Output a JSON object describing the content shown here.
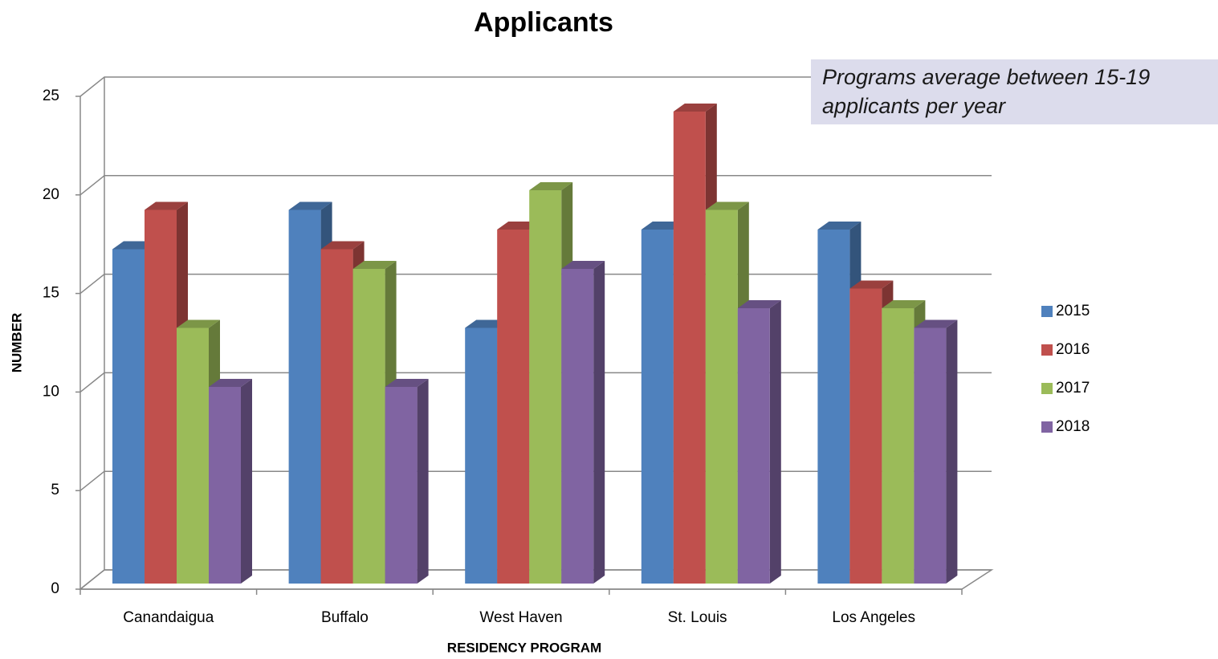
{
  "chart_data": {
    "type": "bar3d",
    "title": "Applicants",
    "annotation": "Programs average between 15-19 applicants per year",
    "x_label": "RESIDENCY PROGRAM",
    "y_label": "NUMBER",
    "categories": [
      "Canandaigua",
      "Buffalo",
      "West Haven",
      "St. Louis",
      "Los Angeles"
    ],
    "series": [
      {
        "name": "2015",
        "color": "#4f81bd",
        "values": [
          17,
          19,
          13,
          18,
          18
        ]
      },
      {
        "name": "2016",
        "color": "#c0504d",
        "values": [
          19,
          17,
          18,
          24,
          15
        ]
      },
      {
        "name": "2017",
        "color": "#9bbb59",
        "values": [
          13,
          16,
          20,
          19,
          14
        ]
      },
      {
        "name": "2018",
        "color": "#8064a2",
        "values": [
          10,
          10,
          16,
          14,
          13
        ]
      }
    ],
    "ylim": [
      0,
      25
    ],
    "yticks": [
      0,
      5,
      10,
      15,
      20,
      25
    ],
    "grid": true,
    "legend": "right"
  }
}
